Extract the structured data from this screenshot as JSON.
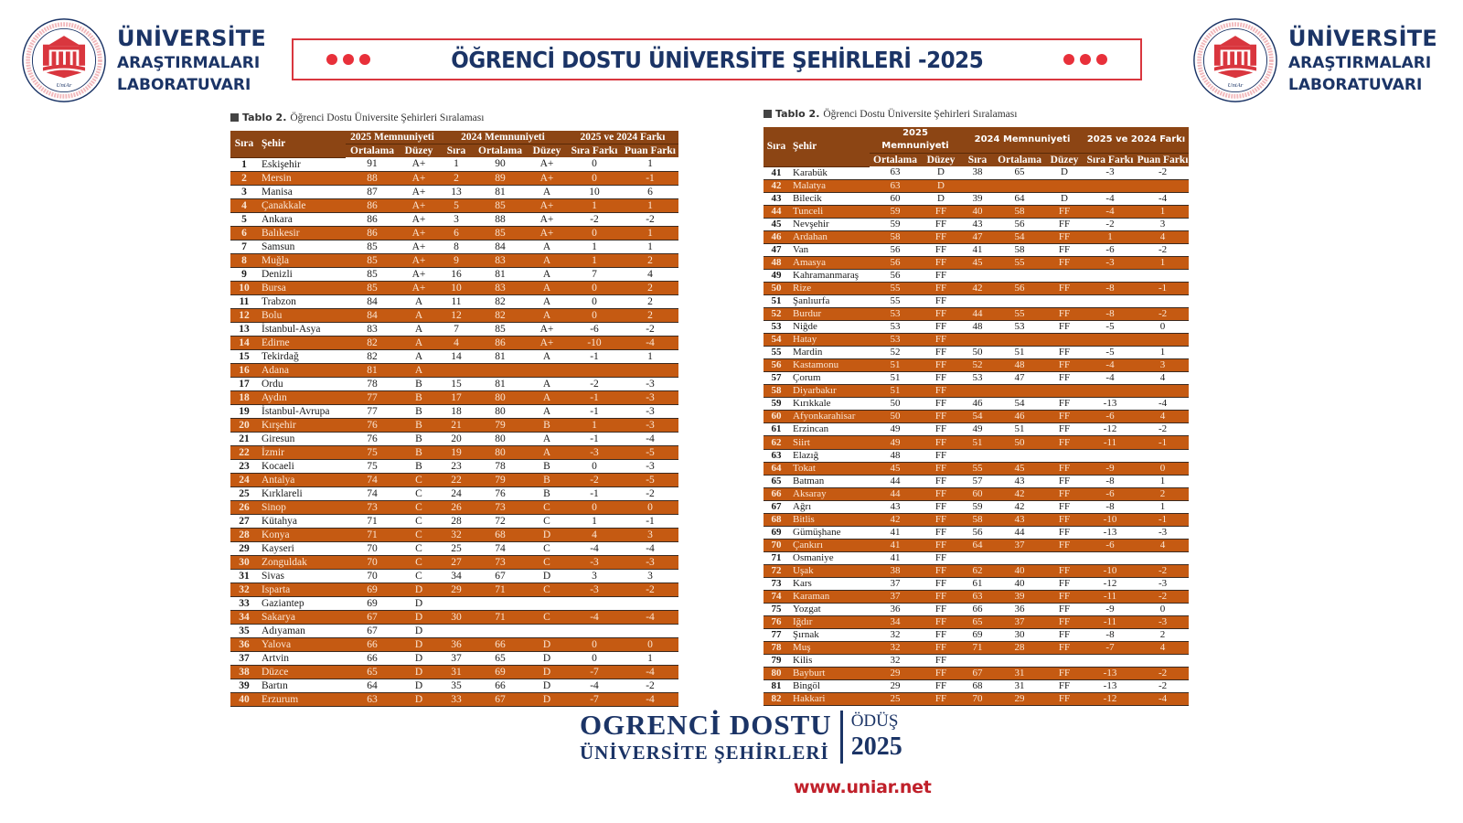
{
  "header": {
    "logo": {
      "line1": "ÜNİVERSİTE",
      "line2": "ARAŞTIRMALARI",
      "line3": "LABORATUVARI",
      "seal_ring_text": "ÜNİVERSİTE ARAŞTIRMALARI LABORATUVARI",
      "seal_ring_text_en": "UNIVERSITY ASSESMENTS & RESEARCH CENTER",
      "seal_monogram": "UniAr"
    },
    "banner_title": "ÖĞRENCİ DOSTU ÜNİVERSİTE ŞEHİRLERİ -2025",
    "colors": {
      "navy": "#1b3466",
      "red": "#e8303a",
      "header_brown": "#8c4514",
      "row_orange": "#c55a12"
    }
  },
  "table_caption": {
    "label": "Tablo 2.",
    "text": "Öğrenci Dostu Üniversite Şehirleri Sıralaması"
  },
  "columns": {
    "rank": "Sıra",
    "city": "Şehir",
    "group2025": "2025 Memnuniyeti",
    "group2024": "2024 Memnuniyeti",
    "groupDiff": "2025 ve 2024 Farkı",
    "avg": "Ortalama",
    "level": "Düzey",
    "rank2024": "Sıra",
    "rankDiff": "Sıra Farkı",
    "scoreDiff": "Puan Farkı"
  },
  "table_left": [
    [
      "1",
      "Eskişehir",
      "91",
      "A+",
      "1",
      "90",
      "A+",
      "0",
      "1"
    ],
    [
      "2",
      "Mersin",
      "88",
      "A+",
      "2",
      "89",
      "A+",
      "0",
      "-1"
    ],
    [
      "3",
      "Manisa",
      "87",
      "A+",
      "13",
      "81",
      "A",
      "10",
      "6"
    ],
    [
      "4",
      "Çanakkale",
      "86",
      "A+",
      "5",
      "85",
      "A+",
      "1",
      "1"
    ],
    [
      "5",
      "Ankara",
      "86",
      "A+",
      "3",
      "88",
      "A+",
      "-2",
      "-2"
    ],
    [
      "6",
      "Balıkesir",
      "86",
      "A+",
      "6",
      "85",
      "A+",
      "0",
      "1"
    ],
    [
      "7",
      "Samsun",
      "85",
      "A+",
      "8",
      "84",
      "A",
      "1",
      "1"
    ],
    [
      "8",
      "Muğla",
      "85",
      "A+",
      "9",
      "83",
      "A",
      "1",
      "2"
    ],
    [
      "9",
      "Denizli",
      "85",
      "A+",
      "16",
      "81",
      "A",
      "7",
      "4"
    ],
    [
      "10",
      "Bursa",
      "85",
      "A+",
      "10",
      "83",
      "A",
      "0",
      "2"
    ],
    [
      "11",
      "Trabzon",
      "84",
      "A",
      "11",
      "82",
      "A",
      "0",
      "2"
    ],
    [
      "12",
      "Bolu",
      "84",
      "A",
      "12",
      "82",
      "A",
      "0",
      "2"
    ],
    [
      "13",
      "İstanbul-Asya",
      "83",
      "A",
      "7",
      "85",
      "A+",
      "-6",
      "-2"
    ],
    [
      "14",
      "Edirne",
      "82",
      "A",
      "4",
      "86",
      "A+",
      "-10",
      "-4"
    ],
    [
      "15",
      "Tekirdağ",
      "82",
      "A",
      "14",
      "81",
      "A",
      "-1",
      "1"
    ],
    [
      "16",
      "Adana",
      "81",
      "A",
      "",
      "",
      "",
      "",
      ""
    ],
    [
      "17",
      "Ordu",
      "78",
      "B",
      "15",
      "81",
      "A",
      "-2",
      "-3"
    ],
    [
      "18",
      "Aydın",
      "77",
      "B",
      "17",
      "80",
      "A",
      "-1",
      "-3"
    ],
    [
      "19",
      "İstanbul-Avrupa",
      "77",
      "B",
      "18",
      "80",
      "A",
      "-1",
      "-3"
    ],
    [
      "20",
      "Kırşehir",
      "76",
      "B",
      "21",
      "79",
      "B",
      "1",
      "-3"
    ],
    [
      "21",
      "Giresun",
      "76",
      "B",
      "20",
      "80",
      "A",
      "-1",
      "-4"
    ],
    [
      "22",
      "İzmir",
      "75",
      "B",
      "19",
      "80",
      "A",
      "-3",
      "-5"
    ],
    [
      "23",
      "Kocaeli",
      "75",
      "B",
      "23",
      "78",
      "B",
      "0",
      "-3"
    ],
    [
      "24",
      "Antalya",
      "74",
      "C",
      "22",
      "79",
      "B",
      "-2",
      "-5"
    ],
    [
      "25",
      "Kırklareli",
      "74",
      "C",
      "24",
      "76",
      "B",
      "-1",
      "-2"
    ],
    [
      "26",
      "Sinop",
      "73",
      "C",
      "26",
      "73",
      "C",
      "0",
      "0"
    ],
    [
      "27",
      "Kütahya",
      "71",
      "C",
      "28",
      "72",
      "C",
      "1",
      "-1"
    ],
    [
      "28",
      "Konya",
      "71",
      "C",
      "32",
      "68",
      "D",
      "4",
      "3"
    ],
    [
      "29",
      "Kayseri",
      "70",
      "C",
      "25",
      "74",
      "C",
      "-4",
      "-4"
    ],
    [
      "30",
      "Zonguldak",
      "70",
      "C",
      "27",
      "73",
      "C",
      "-3",
      "-3"
    ],
    [
      "31",
      "Sivas",
      "70",
      "C",
      "34",
      "67",
      "D",
      "3",
      "3"
    ],
    [
      "32",
      "Isparta",
      "69",
      "D",
      "29",
      "71",
      "C",
      "-3",
      "-2"
    ],
    [
      "33",
      "Gaziantep",
      "69",
      "D",
      "",
      "",
      "",
      "",
      ""
    ],
    [
      "34",
      "Sakarya",
      "67",
      "D",
      "30",
      "71",
      "C",
      "-4",
      "-4"
    ],
    [
      "35",
      "Adıyaman",
      "67",
      "D",
      "",
      "",
      "",
      "",
      ""
    ],
    [
      "36",
      "Yalova",
      "66",
      "D",
      "36",
      "66",
      "D",
      "0",
      "0"
    ],
    [
      "37",
      "Artvin",
      "66",
      "D",
      "37",
      "65",
      "D",
      "0",
      "1"
    ],
    [
      "38",
      "Düzce",
      "65",
      "D",
      "31",
      "69",
      "D",
      "-7",
      "-4"
    ],
    [
      "39",
      "Bartın",
      "64",
      "D",
      "35",
      "66",
      "D",
      "-4",
      "-2"
    ],
    [
      "40",
      "Erzurum",
      "63",
      "D",
      "33",
      "67",
      "D",
      "-7",
      "-4"
    ]
  ],
  "table_right": [
    [
      "41",
      "Karabük",
      "63",
      "D",
      "38",
      "65",
      "D",
      "-3",
      "-2"
    ],
    [
      "42",
      "Malatya",
      "63",
      "D",
      "",
      "",
      "",
      "",
      ""
    ],
    [
      "43",
      "Bilecik",
      "60",
      "D",
      "39",
      "64",
      "D",
      "-4",
      "-4"
    ],
    [
      "44",
      "Tunceli",
      "59",
      "FF",
      "40",
      "58",
      "FF",
      "-4",
      "1"
    ],
    [
      "45",
      "Nevşehir",
      "59",
      "FF",
      "43",
      "56",
      "FF",
      "-2",
      "3"
    ],
    [
      "46",
      "Ardahan",
      "58",
      "FF",
      "47",
      "54",
      "FF",
      "1",
      "4"
    ],
    [
      "47",
      "Van",
      "56",
      "FF",
      "41",
      "58",
      "FF",
      "-6",
      "-2"
    ],
    [
      "48",
      "Amasya",
      "56",
      "FF",
      "45",
      "55",
      "FF",
      "-3",
      "1"
    ],
    [
      "49",
      "Kahramanmaraş",
      "56",
      "FF",
      "",
      "",
      "",
      "",
      ""
    ],
    [
      "50",
      "Rize",
      "55",
      "FF",
      "42",
      "56",
      "FF",
      "-8",
      "-1"
    ],
    [
      "51",
      "Şanlıurfa",
      "55",
      "FF",
      "",
      "",
      "",
      "",
      ""
    ],
    [
      "52",
      "Burdur",
      "53",
      "FF",
      "44",
      "55",
      "FF",
      "-8",
      "-2"
    ],
    [
      "53",
      "Niğde",
      "53",
      "FF",
      "48",
      "53",
      "FF",
      "-5",
      "0"
    ],
    [
      "54",
      "Hatay",
      "53",
      "FF",
      "",
      "",
      "",
      "",
      ""
    ],
    [
      "55",
      "Mardin",
      "52",
      "FF",
      "50",
      "51",
      "FF",
      "-5",
      "1"
    ],
    [
      "56",
      "Kastamonu",
      "51",
      "FF",
      "52",
      "48",
      "FF",
      "-4",
      "3"
    ],
    [
      "57",
      "Çorum",
      "51",
      "FF",
      "53",
      "47",
      "FF",
      "-4",
      "4"
    ],
    [
      "58",
      "Diyarbakır",
      "51",
      "FF",
      "",
      "",
      "",
      "",
      ""
    ],
    [
      "59",
      "Kırıkkale",
      "50",
      "FF",
      "46",
      "54",
      "FF",
      "-13",
      "-4"
    ],
    [
      "60",
      "Afyonkarahisar",
      "50",
      "FF",
      "54",
      "46",
      "FF",
      "-6",
      "4"
    ],
    [
      "61",
      "Erzincan",
      "49",
      "FF",
      "49",
      "51",
      "FF",
      "-12",
      "-2"
    ],
    [
      "62",
      "Siirt",
      "49",
      "FF",
      "51",
      "50",
      "FF",
      "-11",
      "-1"
    ],
    [
      "63",
      "Elazığ",
      "48",
      "FF",
      "",
      "",
      "",
      "",
      ""
    ],
    [
      "64",
      "Tokat",
      "45",
      "FF",
      "55",
      "45",
      "FF",
      "-9",
      "0"
    ],
    [
      "65",
      "Batman",
      "44",
      "FF",
      "57",
      "43",
      "FF",
      "-8",
      "1"
    ],
    [
      "66",
      "Aksaray",
      "44",
      "FF",
      "60",
      "42",
      "FF",
      "-6",
      "2"
    ],
    [
      "67",
      "Ağrı",
      "43",
      "FF",
      "59",
      "42",
      "FF",
      "-8",
      "1"
    ],
    [
      "68",
      "Bitlis",
      "42",
      "FF",
      "58",
      "43",
      "FF",
      "-10",
      "-1"
    ],
    [
      "69",
      "Gümüşhane",
      "41",
      "FF",
      "56",
      "44",
      "FF",
      "-13",
      "-3"
    ],
    [
      "70",
      "Çankırı",
      "41",
      "FF",
      "64",
      "37",
      "FF",
      "-6",
      "4"
    ],
    [
      "71",
      "Osmaniye",
      "41",
      "FF",
      "",
      "",
      "",
      "",
      ""
    ],
    [
      "72",
      "Uşak",
      "38",
      "FF",
      "62",
      "40",
      "FF",
      "-10",
      "-2"
    ],
    [
      "73",
      "Kars",
      "37",
      "FF",
      "61",
      "40",
      "FF",
      "-12",
      "-3"
    ],
    [
      "74",
      "Karaman",
      "37",
      "FF",
      "63",
      "39",
      "FF",
      "-11",
      "-2"
    ],
    [
      "75",
      "Yozgat",
      "36",
      "FF",
      "66",
      "36",
      "FF",
      "-9",
      "0"
    ],
    [
      "76",
      "Iğdır",
      "34",
      "FF",
      "65",
      "37",
      "FF",
      "-11",
      "-3"
    ],
    [
      "77",
      "Şırnak",
      "32",
      "FF",
      "69",
      "30",
      "FF",
      "-8",
      "2"
    ],
    [
      "78",
      "Muş",
      "32",
      "FF",
      "71",
      "28",
      "FF",
      "-7",
      "4"
    ],
    [
      "79",
      "Kilis",
      "32",
      "FF",
      "",
      "",
      "",
      "",
      ""
    ],
    [
      "80",
      "Bayburt",
      "29",
      "FF",
      "67",
      "31",
      "FF",
      "-13",
      "-2"
    ],
    [
      "81",
      "Bingöl",
      "29",
      "FF",
      "68",
      "31",
      "FF",
      "-13",
      "-2"
    ],
    [
      "82",
      "Hakkari",
      "25",
      "FF",
      "70",
      "29",
      "FF",
      "-12",
      "-4"
    ]
  ],
  "footer": {
    "brand_line1": "OGRENCİ DOSTU",
    "brand_line2": "ÜNİVERSİTE ŞEHİRLERİ",
    "abbr": "ÖDÜŞ",
    "year": "2025",
    "website": "www.uniar.net"
  }
}
